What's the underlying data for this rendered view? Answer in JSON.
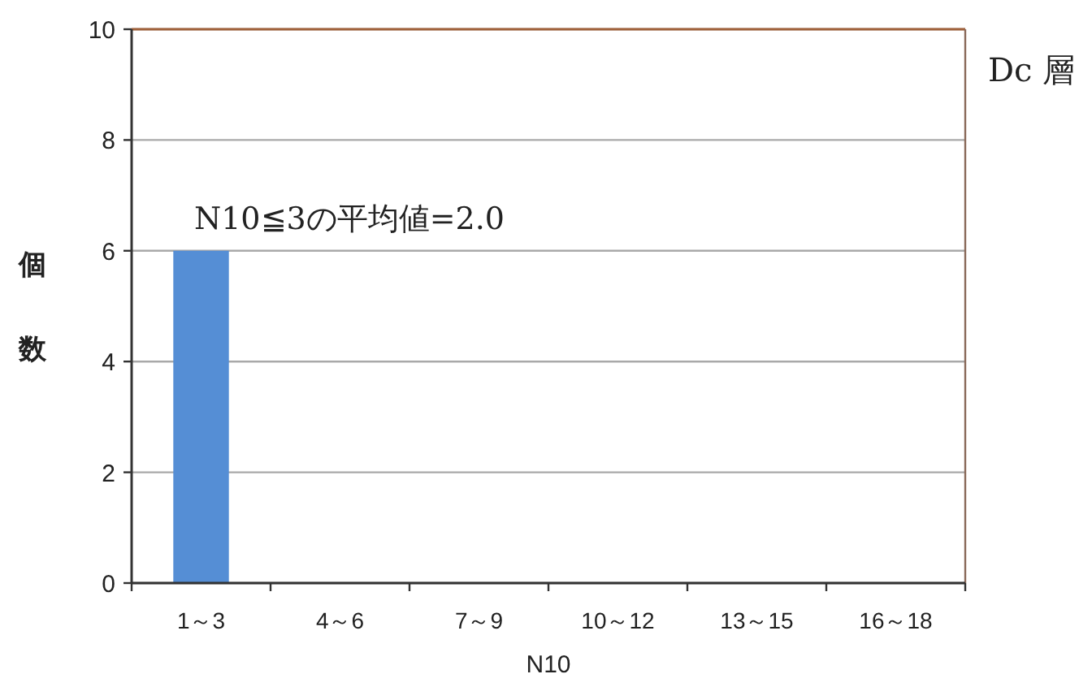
{
  "chart_data": {
    "type": "bar",
    "title": "Dc 層",
    "xlabel": "N10",
    "ylabel": "個数",
    "annotations": [
      "N10≦3の平均値=2.0"
    ],
    "categories": [
      "1～3",
      "4～6",
      "7～9",
      "10～12",
      "13～15",
      "16～18"
    ],
    "values": [
      6,
      0,
      0,
      0,
      0,
      0
    ],
    "color": "#558ed5",
    "ylim": [
      0,
      10
    ],
    "yticks": [
      0,
      2,
      4,
      6,
      8,
      10
    ],
    "grid": "y"
  }
}
